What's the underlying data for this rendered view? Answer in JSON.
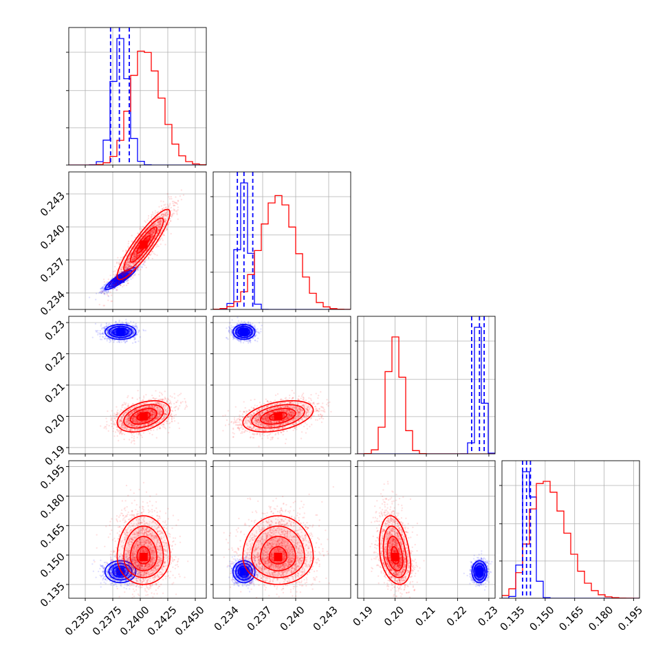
{
  "chart_data": {
    "type": "corner",
    "grid": true,
    "parameters": 4,
    "colors": {
      "blue": "#0000ff",
      "red": "#ff0000"
    },
    "series": [
      {
        "color": "blue",
        "means": [
          0.2382,
          0.2353,
          0.227,
          0.1415
        ],
        "stds": [
          0.0007,
          0.0005,
          0.0012,
          0.0028
        ],
        "correlations": [
          [
            0,
            1,
            0.9
          ],
          [
            0,
            2,
            0
          ],
          [
            0,
            3,
            0
          ],
          [
            1,
            2,
            0
          ],
          [
            1,
            3,
            0
          ],
          [
            2,
            3,
            0
          ]
        ],
        "quantiles": [
          [
            0.2373,
            0.2381,
            0.239
          ],
          [
            0.2347,
            0.2353,
            0.2361
          ],
          [
            0.2245,
            0.227,
            0.2285
          ],
          [
            0.1385,
            0.1405,
            0.1425
          ]
        ]
      },
      {
        "color": "red",
        "means": [
          0.2403,
          0.2384,
          0.2,
          0.149
        ],
        "stds": [
          0.0012,
          0.0016,
          0.0025,
          0.007
        ],
        "correlations": [
          [
            0,
            1,
            0.9
          ],
          [
            0,
            2,
            0.4
          ],
          [
            0,
            3,
            0
          ],
          [
            1,
            2,
            0.4
          ],
          [
            1,
            3,
            0
          ],
          [
            2,
            3,
            -0.3
          ]
        ],
        "quantiles": []
      }
    ],
    "ranges": [
      [
        0.2335,
        0.246
      ],
      [
        0.2325,
        0.245
      ],
      [
        0.188,
        0.232
      ],
      [
        0.128,
        0.198
      ]
    ],
    "ticks": [
      [
        "0.2350",
        "0.2375",
        "0.2400",
        "0.2425",
        "0.2450"
      ],
      [
        "0.234",
        "0.237",
        "0.240",
        "0.243"
      ],
      [
        "0.19",
        "0.20",
        "0.21",
        "0.22",
        "0.23"
      ],
      [
        "0.135",
        "0.150",
        "0.165",
        "0.180",
        "0.195"
      ]
    ],
    "diag_hist_ticks": [
      [
        0,
        0.33,
        0.66,
        1.0
      ],
      [
        0,
        0.33,
        0.66,
        1.0
      ],
      [
        0,
        0.33,
        0.66,
        1.0
      ],
      [
        0,
        0.33,
        0.66,
        1.0
      ]
    ]
  }
}
